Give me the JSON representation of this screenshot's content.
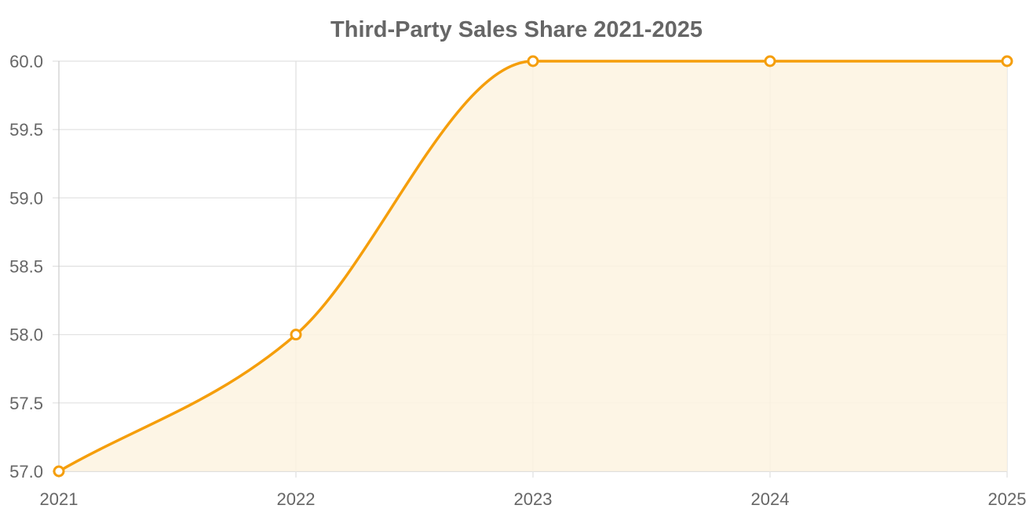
{
  "chart_data": {
    "type": "area",
    "title": "Third-Party Sales Share 2021-2025",
    "categories": [
      "2021",
      "2022",
      "2023",
      "2024",
      "2025"
    ],
    "series": [
      {
        "values": [
          57.0,
          58.0,
          60.0,
          60.0,
          60.0
        ]
      }
    ],
    "ylim": [
      57.0,
      60.0
    ],
    "yticks": [
      "57.0",
      "57.5",
      "58.0",
      "58.5",
      "59.0",
      "59.5",
      "60.0"
    ],
    "grid": true,
    "legend": "none",
    "colors": {
      "line": "#f59e0b",
      "fill": "#fdf3e1",
      "grid": "#e0e0e0",
      "axis": "#cccccc",
      "text": "#666666"
    }
  }
}
